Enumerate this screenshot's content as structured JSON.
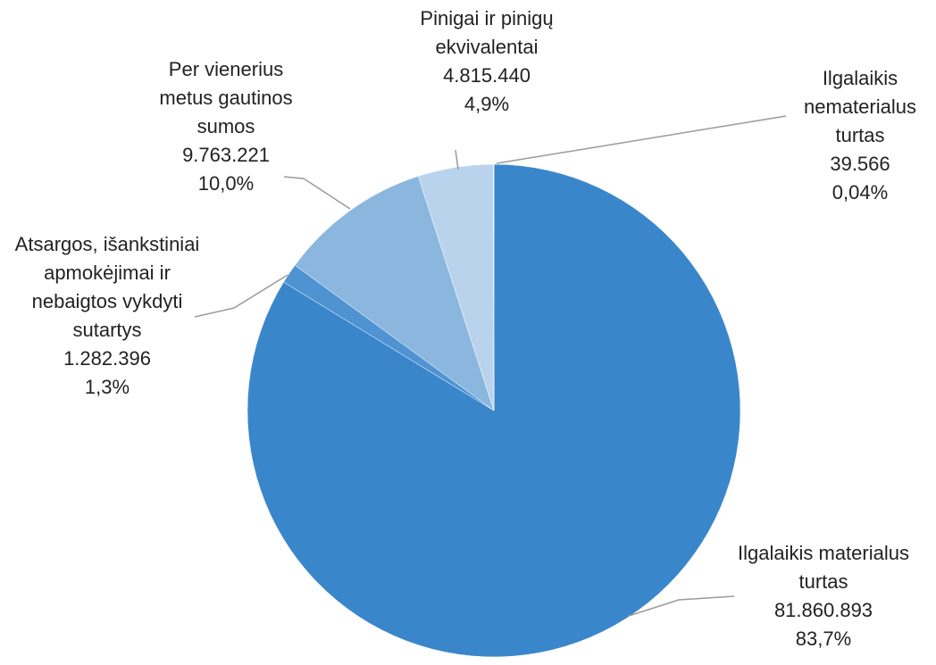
{
  "chart_data": {
    "type": "pie",
    "categories": [
      "Ilgalaikis materialus turtas",
      "Atsargos, išankstiniai apmokėjimai ir nebaigtos vykdyti sutartys",
      "Per vienerius metus gautinos sumos",
      "Pinigai ir pinigų ekvivalentai",
      "Ilgalaikis nematerialus turtas"
    ],
    "values": [
      81860893,
      1282396,
      9763221,
      4815440,
      39566
    ],
    "value_labels": [
      "81.860.893",
      "1.282.396",
      "9.763.221",
      "4.815.440",
      "39.566"
    ],
    "percent_labels": [
      "83,7%",
      "1,3%",
      "10,0%",
      "4,9%",
      "0,04%"
    ],
    "colors": [
      "#3a86cb",
      "#4f93d2",
      "#8bb7df",
      "#bad3ec",
      "#dce9f6"
    ]
  }
}
